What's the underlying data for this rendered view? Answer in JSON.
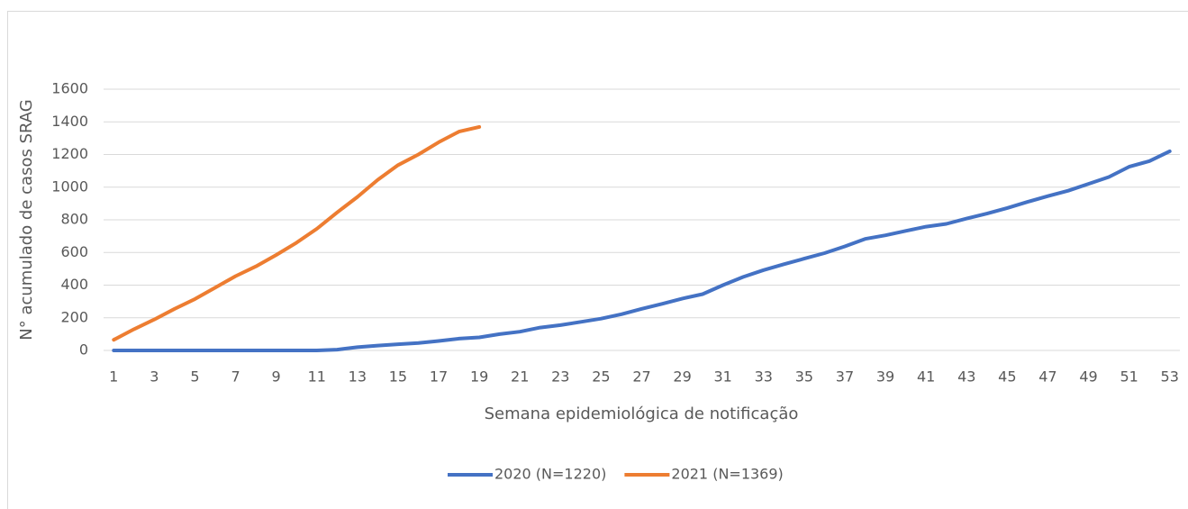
{
  "chart_data": {
    "type": "line",
    "x_label": "Semana epidemiológica de notificação",
    "y_label": "N° acumulado de casos SRAG",
    "categories": [
      1,
      null,
      3,
      null,
      5,
      null,
      7,
      null,
      9,
      null,
      11,
      null,
      13,
      null,
      15,
      null,
      17,
      null,
      19,
      null,
      21,
      null,
      23,
      null,
      25,
      null,
      27,
      null,
      29,
      null,
      31,
      null,
      33,
      null,
      35,
      null,
      37,
      null,
      39,
      null,
      41,
      null,
      43,
      null,
      45,
      null,
      47,
      null,
      49,
      null,
      51,
      null,
      53
    ],
    "series": [
      {
        "name": "2020 (N=1220)",
        "color": "#4472c4",
        "values": [
          0,
          0,
          0,
          0,
          0,
          0,
          0,
          0,
          0,
          0,
          0,
          5,
          20,
          30,
          38,
          45,
          58,
          72,
          80,
          100,
          115,
          140,
          155,
          175,
          195,
          222,
          255,
          285,
          318,
          345,
          400,
          450,
          492,
          528,
          562,
          596,
          637,
          683,
          705,
          732,
          758,
          775,
          808,
          838,
          872,
          910,
          945,
          978,
          1020,
          1062,
          1125,
          1160,
          1220
        ]
      },
      {
        "name": "2021 (N=1369)",
        "color": "#ed7d31",
        "values": [
          65,
          130,
          190,
          255,
          315,
          385,
          455,
          515,
          585,
          660,
          745,
          845,
          940,
          1045,
          1135,
          1200,
          1275,
          1340,
          1369,
          null,
          null,
          null,
          null,
          null,
          null,
          null,
          null,
          null,
          null,
          null,
          null,
          null,
          null,
          null,
          null,
          null,
          null,
          null,
          null,
          null,
          null,
          null,
          null,
          null,
          null,
          null,
          null,
          null,
          null,
          null,
          null,
          null,
          null
        ]
      }
    ],
    "ylim": [
      0,
      1600
    ],
    "yticks": [
      0,
      200,
      400,
      600,
      800,
      1000,
      1200,
      1400,
      1600
    ],
    "grid": true,
    "legend": "bottom"
  }
}
